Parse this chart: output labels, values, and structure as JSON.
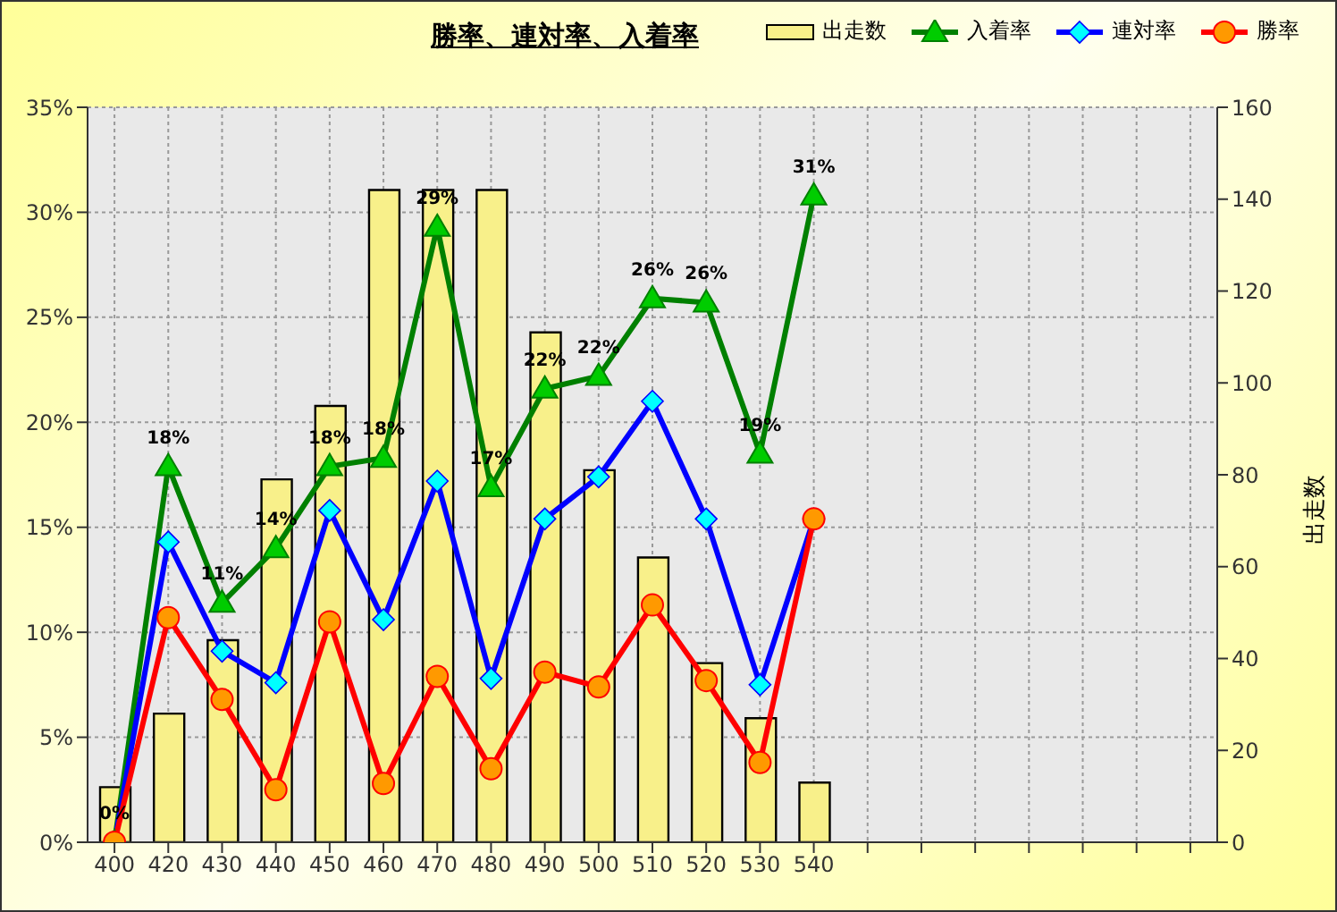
{
  "chart_data": {
    "type": "line",
    "title": "勝率、連対率、入着率",
    "y2label": "出走数",
    "categories": [
      "400",
      "420",
      "430",
      "440",
      "450",
      "460",
      "470",
      "480",
      "490",
      "500",
      "510",
      "520",
      "530",
      "540",
      null,
      null,
      null,
      null,
      null,
      null,
      null
    ],
    "series": [
      {
        "name": "出走数",
        "type": "bar",
        "axis": "y2",
        "color": "#f8f08a",
        "values": [
          12,
          28,
          44,
          79,
          95,
          142,
          142,
          142,
          111,
          81,
          62,
          39,
          27,
          13,
          null,
          null,
          null,
          null,
          null,
          null,
          null
        ]
      },
      {
        "name": "入着率",
        "color": "#008000",
        "marker": "triangle",
        "values": [
          0,
          17.9,
          11.4,
          14.0,
          17.9,
          18.3,
          29.3,
          16.9,
          21.6,
          22.2,
          25.9,
          25.7,
          18.5,
          30.8,
          null,
          null,
          null,
          null,
          null,
          null,
          null
        ],
        "value_labels": [
          "0%",
          "18%",
          "11%",
          "14%",
          "18%",
          "18%",
          "29%",
          "17%",
          "22%",
          "22%",
          "26%",
          "26%",
          "19%",
          "31%",
          null,
          null,
          null,
          null,
          null,
          null,
          null
        ]
      },
      {
        "name": "連対率",
        "color": "#0000ff",
        "marker": "diamond",
        "values": [
          0,
          14.3,
          9.1,
          7.6,
          15.8,
          10.6,
          17.2,
          7.8,
          15.4,
          17.4,
          21.0,
          15.4,
          7.5,
          15.4,
          null,
          null,
          null,
          null,
          null,
          null,
          null
        ]
      },
      {
        "name": "勝率",
        "color": "#ff0000",
        "marker": "circle",
        "values": [
          0,
          10.7,
          6.8,
          2.5,
          10.5,
          2.8,
          7.9,
          3.5,
          8.1,
          7.4,
          11.3,
          7.7,
          3.8,
          15.4,
          null,
          null,
          null,
          null,
          null,
          null,
          null
        ]
      }
    ],
    "ylim": [
      0,
      35
    ],
    "yticks": [
      {
        "value": 0,
        "label": "0%"
      },
      {
        "value": 5,
        "label": "5%"
      },
      {
        "value": 10,
        "label": "10%"
      },
      {
        "value": 15,
        "label": "15%"
      },
      {
        "value": 20,
        "label": "20%"
      },
      {
        "value": 25,
        "label": "25%"
      },
      {
        "value": 30,
        "label": "30%"
      },
      {
        "value": 35,
        "label": "35%"
      }
    ],
    "y2lim": [
      0,
      160
    ],
    "y2ticks": [
      0,
      20,
      40,
      60,
      80,
      100,
      120,
      140,
      160
    ],
    "grid": true,
    "legend": "top right"
  }
}
